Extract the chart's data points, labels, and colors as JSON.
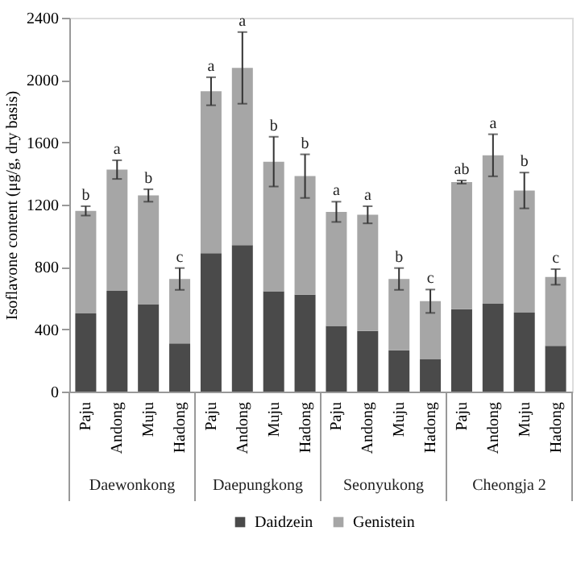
{
  "chart_data": {
    "type": "bar",
    "stacked": true,
    "ylabel": "Isoflavone content (μg/g, dry basis)",
    "categories": [
      "Paju",
      "Andong",
      "Muju",
      "Hadong",
      "Paju",
      "Andong",
      "Muju",
      "Hadong",
      "Paju",
      "Andong",
      "Muju",
      "Hadong",
      "Paju",
      "Andong",
      "Muju",
      "Hadong"
    ],
    "series": [
      {
        "name": "Daidzein",
        "color": "#4a4a4a",
        "values": [
          502,
          647,
          561,
          309,
          889,
          940,
          644,
          622,
          421,
          389,
          265,
          207,
          529,
          564,
          507,
          293
        ]
      },
      {
        "name": "Genistein",
        "color": "#a6a6a6",
        "values": [
          658,
          778,
          698,
          414,
          1039,
          1138,
          832,
          761,
          733,
          746,
          458,
          373,
          816,
          953,
          784,
          443
        ],
        "errors": [
          30,
          60,
          40,
          70,
          90,
          230,
          160,
          140,
          65,
          55,
          70,
          75,
          10,
          135,
          115,
          50
        ]
      }
    ],
    "ylim": [
      0,
      2400
    ],
    "yticks": [
      0,
      400,
      800,
      1200,
      1600,
      2000,
      2400
    ],
    "grid": false,
    "legend": "bottom",
    "annotations": [
      "Daewonkong",
      "Daepungkong",
      "Seonyukong",
      "Cheongja 2",
      {
        "text": "b",
        "y": 1190
      },
      {
        "text": "a",
        "y": 1485
      },
      {
        "text": "b",
        "y": 1300
      },
      {
        "text": "c",
        "y": 793
      },
      {
        "text": "a",
        "y": 2018
      },
      {
        "text": "a",
        "y": 2308
      },
      {
        "text": "b",
        "y": 1636
      },
      {
        "text": "b",
        "y": 1523
      },
      {
        "text": "a",
        "y": 1219
      },
      {
        "text": "a",
        "y": 1190
      },
      {
        "text": "b",
        "y": 793
      },
      {
        "text": "c",
        "y": 655
      },
      {
        "text": "ab",
        "y": 1355
      },
      {
        "text": "a",
        "y": 1652
      },
      {
        "text": "b",
        "y": 1406
      },
      {
        "text": "c",
        "y": 786
      }
    ]
  }
}
